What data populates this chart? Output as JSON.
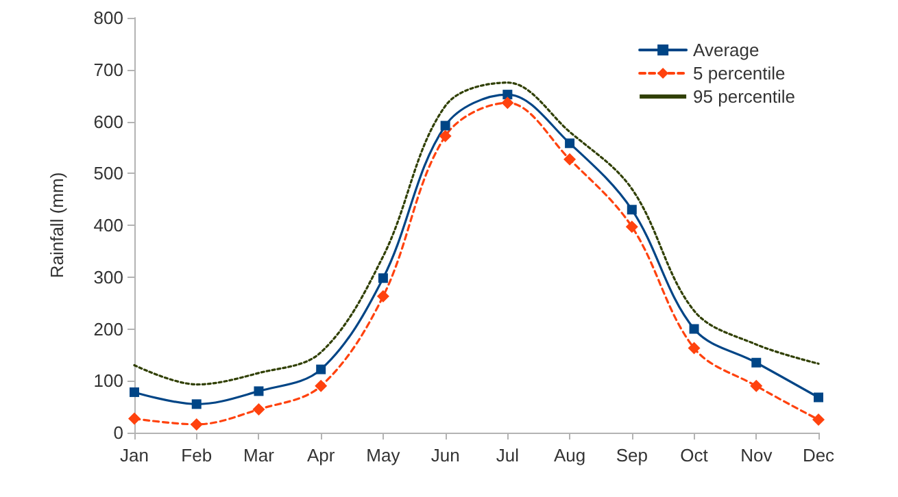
{
  "chart_data": {
    "type": "line",
    "ylabel": "Rainfall (mm)",
    "categories": [
      "Jan",
      "Feb",
      "Mar",
      "Apr",
      "May",
      "Jun",
      "Jul",
      "Aug",
      "Sep",
      "Oct",
      "Nov",
      "Dec"
    ],
    "series": [
      {
        "name": "Average",
        "color": "#004586",
        "marker": "square",
        "line_style": "solid",
        "values": [
          78,
          55,
          80,
          122,
          298,
          592,
          652,
          558,
          430,
          200,
          135,
          68
        ]
      },
      {
        "name": "5 percentile",
        "color": "#ff420e",
        "marker": "diamond",
        "line_style": "dashed",
        "values": [
          27,
          16,
          45,
          90,
          263,
          572,
          636,
          527,
          397,
          163,
          90,
          25
        ]
      },
      {
        "name": "95 percentile",
        "color": "#314004",
        "marker": "none",
        "line_style": "dotted",
        "values": [
          130,
          93,
          115,
          155,
          340,
          630,
          675,
          580,
          470,
          235,
          170,
          133
        ]
      }
    ],
    "ylim": [
      0,
      800
    ],
    "yticks": [
      0,
      100,
      200,
      300,
      400,
      500,
      600,
      700,
      800
    ],
    "grid": false,
    "legend": "top right"
  }
}
